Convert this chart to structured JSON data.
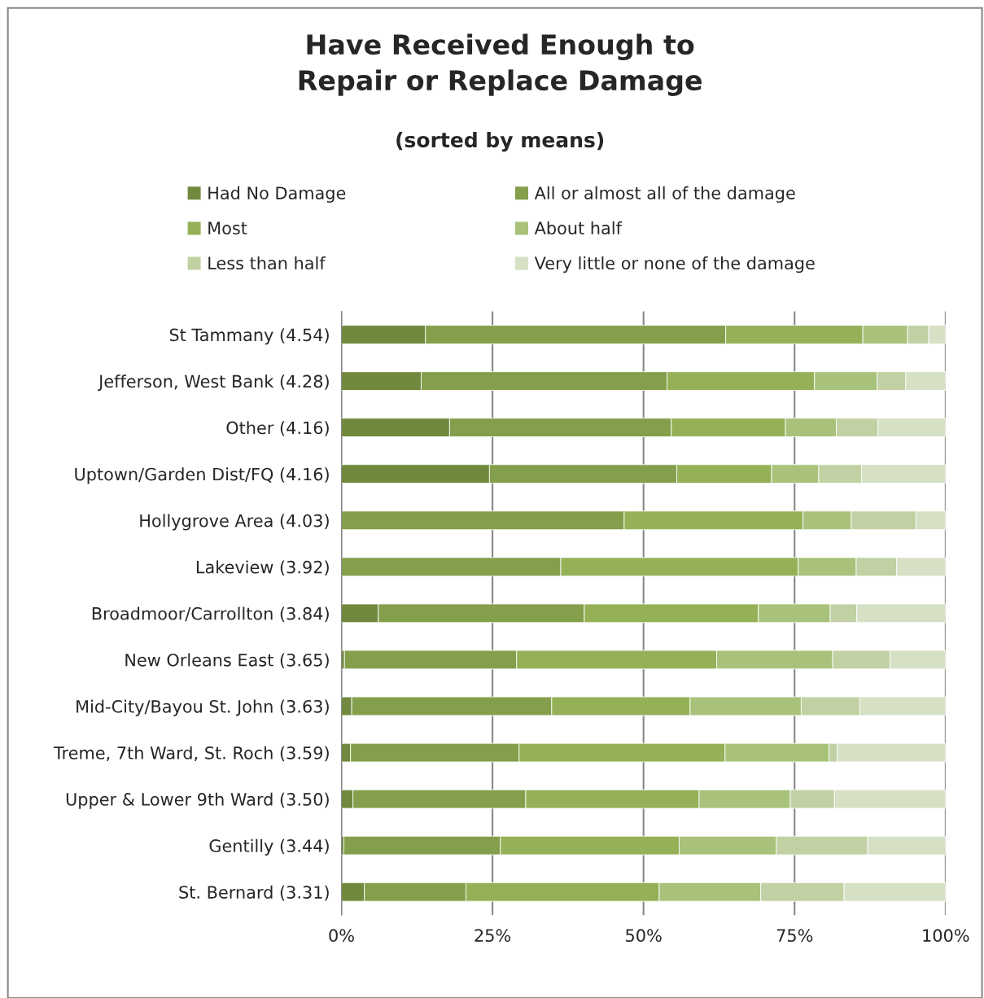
{
  "chart_data": {
    "type": "bar",
    "orientation": "horizontal",
    "stacked": true,
    "title": "Have Received Enough to\nRepair or Replace Damage",
    "subtitle": "(sorted by means)",
    "categories": [
      "St Tammany (4.54)",
      "Jefferson, West Bank (4.28)",
      "Other (4.16)",
      "Uptown/Garden Dist/FQ (4.16)",
      "Hollygrove Area (4.03)",
      "Lakeview (3.92)",
      "Broadmoor/Carrollton (3.84)",
      "New Orleans East (3.65)",
      "Mid-City/Bayou St. John (3.63)",
      "Treme, 7th Ward, St. Roch (3.59)",
      "Upper & Lower 9th Ward (3.50)",
      "Gentilly (3.44)",
      "St. Bernard (3.31)"
    ],
    "series": [
      {
        "name": "Had No Damage",
        "color": "#71893f",
        "values": [
          13.9,
          13.2,
          17.9,
          24.5,
          0,
          0,
          6.1,
          0.5,
          1.7,
          1.5,
          1.9,
          0.4,
          3.8
        ]
      },
      {
        "name": "All or almost all of the damage",
        "color": "#849f4b",
        "values": [
          49.7,
          40.7,
          36.7,
          31.0,
          46.8,
          36.3,
          34.1,
          28.5,
          33.1,
          27.9,
          28.6,
          25.9,
          16.8
        ]
      },
      {
        "name": "Most",
        "color": "#94b157",
        "values": [
          22.7,
          24.4,
          18.9,
          15.7,
          29.6,
          39.3,
          28.8,
          33.1,
          22.9,
          34.1,
          28.7,
          29.6,
          32.0
        ]
      },
      {
        "name": "About half",
        "color": "#a8c27b",
        "values": [
          7.4,
          10.4,
          8.4,
          7.8,
          8.0,
          9.6,
          11.9,
          19.2,
          18.4,
          17.2,
          15.1,
          16.1,
          16.8
        ]
      },
      {
        "name": "Less than half",
        "color": "#c1d1a3",
        "values": [
          3.5,
          4.7,
          6.9,
          7.1,
          10.7,
          6.7,
          4.4,
          9.5,
          9.7,
          1.4,
          7.3,
          15.1,
          13.8
        ]
      },
      {
        "name": "Very little or none of the damage",
        "color": "#d6e0c4",
        "values": [
          2.8,
          6.6,
          11.2,
          13.9,
          4.9,
          8.1,
          14.7,
          9.2,
          14.2,
          17.9,
          18.4,
          12.9,
          16.8
        ]
      }
    ],
    "xlim": [
      0,
      100
    ],
    "xticks": [
      {
        "value": 0,
        "label": "0%"
      },
      {
        "value": 25,
        "label": "25%"
      },
      {
        "value": 50,
        "label": "50%"
      },
      {
        "value": 75,
        "label": "75%"
      },
      {
        "value": 100,
        "label": "100%"
      }
    ],
    "grid": "x",
    "legend": "top"
  }
}
